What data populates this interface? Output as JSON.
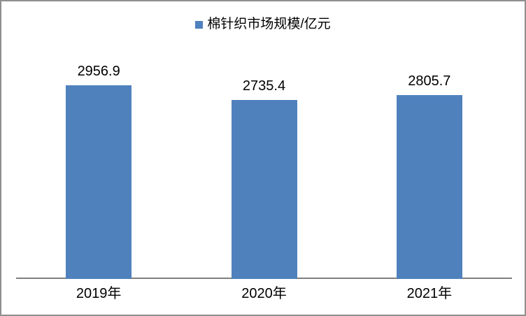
{
  "frame": {
    "background": "#ffffff",
    "border_color": "#8f8f8f"
  },
  "legend": {
    "label": "棉针织市场规模/亿元",
    "marker_color": "#4f81bd",
    "position": "top-center"
  },
  "axis": {
    "line_color": "#7f7f7f"
  },
  "chart_data": {
    "type": "bar",
    "title": "",
    "categories": [
      "2019年",
      "2020年",
      "2021年"
    ],
    "series": [
      {
        "name": "棉针织市场规模/亿元",
        "values": [
          2956.9,
          2735.4,
          2805.7
        ]
      }
    ],
    "value_labels": [
      "2956.9",
      "2735.4",
      "2805.7"
    ],
    "bar_color": "#4f81bd",
    "xlabel": "",
    "ylabel": "",
    "ylim": [
      0,
      3500
    ],
    "grid": false,
    "y_axis_shown": false,
    "legend_position": "top-center",
    "value_labels_shown": true
  }
}
